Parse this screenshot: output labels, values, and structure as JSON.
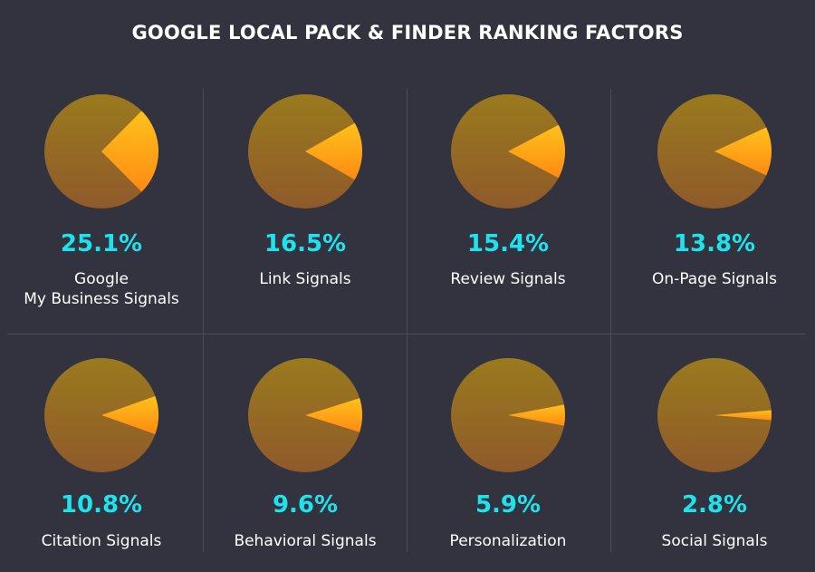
{
  "header": {
    "title": "GOOGLE LOCAL PACK & FINDER RANKING FACTORS"
  },
  "chart_data": {
    "type": "pie",
    "title": "GOOGLE LOCAL PACK & FINDER RANKING FACTORS",
    "colors": {
      "base_top": "#9a7a1e",
      "base_bottom": "#8f5a2a",
      "slice_top": "#ffc21a",
      "slice_bottom": "#ff8a14",
      "value_text": "#1de3ee",
      "background": "#33323f"
    },
    "factors": [
      {
        "value": 25.1,
        "display": "25.1%",
        "label_lines": [
          "Google",
          "My Business Signals"
        ]
      },
      {
        "value": 16.5,
        "display": "16.5%",
        "label_lines": [
          "Link Signals"
        ]
      },
      {
        "value": 15.4,
        "display": "15.4%",
        "label_lines": [
          "Review Signals"
        ]
      },
      {
        "value": 13.8,
        "display": "13.8%",
        "label_lines": [
          "On-Page Signals"
        ]
      },
      {
        "value": 10.8,
        "display": "10.8%",
        "label_lines": [
          "Citation Signals"
        ]
      },
      {
        "value": 9.6,
        "display": "9.6%",
        "label_lines": [
          "Behavioral Signals"
        ]
      },
      {
        "value": 5.9,
        "display": "5.9%",
        "label_lines": [
          "Personalization"
        ]
      },
      {
        "value": 2.8,
        "display": "2.8%",
        "label_lines": [
          "Social Signals"
        ]
      }
    ]
  }
}
